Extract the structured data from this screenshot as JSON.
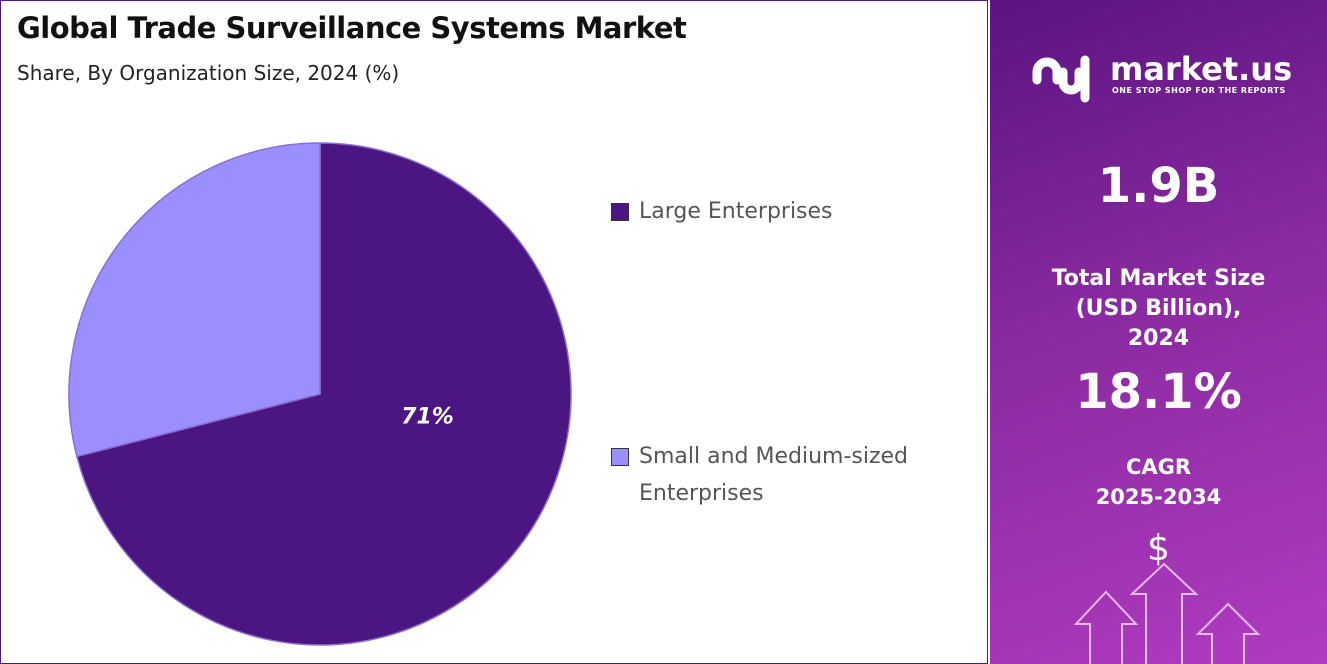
{
  "chart_data": {
    "type": "pie",
    "title": "Global Trade Surveillance Systems Market",
    "subtitle": "Share, By Organization Size, 2024 (%)",
    "categories": [
      "Large Enterprises",
      "Small and Medium-sized Enterprises"
    ],
    "values": [
      71,
      29
    ],
    "value_labels": [
      "71%",
      null
    ],
    "colors": [
      "#4b1582",
      "#9b8fff"
    ]
  },
  "panel": {
    "brand": "market.us",
    "tagline": "ONE STOP SHOP FOR THE REPORTS",
    "market_size": "1.9B",
    "market_size_label": "Total Market Size (USD Billion), 2024",
    "cagr": "18.1%",
    "cagr_label": "CAGR 2025-2034",
    "icon": "$"
  }
}
